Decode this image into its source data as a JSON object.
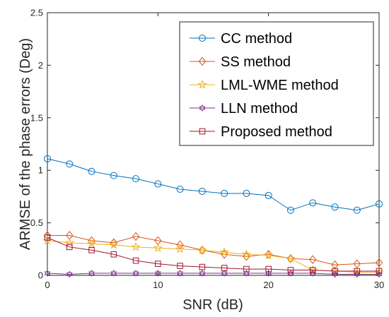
{
  "chart_data": {
    "type": "line",
    "title": "",
    "xlabel": "SNR (dB)",
    "ylabel": "ARMSE of the phase errors (Deg)",
    "xlim": [
      0,
      30
    ],
    "ylim": [
      0,
      2.5
    ],
    "xticks": [
      0,
      10,
      20,
      30
    ],
    "xtick_labels": [
      "0",
      "10",
      "20",
      "30"
    ],
    "yticks": [
      0,
      0.5,
      1,
      1.5,
      2,
      2.5
    ],
    "ytick_labels": [
      "0",
      "0.5",
      "1",
      "1.5",
      "2",
      "2.5"
    ],
    "grid": false,
    "legend_position": "top-right",
    "x": [
      0,
      2,
      4,
      6,
      8,
      10,
      12,
      14,
      16,
      18,
      20,
      22,
      24,
      26,
      28,
      30
    ],
    "series": [
      {
        "name": "CC method",
        "color": "#0072BD",
        "marker": "circle",
        "values": [
          1.11,
          1.06,
          0.99,
          0.95,
          0.92,
          0.87,
          0.82,
          0.8,
          0.78,
          0.78,
          0.76,
          0.62,
          0.69,
          0.65,
          0.62,
          0.68
        ]
      },
      {
        "name": "SS method",
        "color": "#D95319",
        "marker": "diamond",
        "values": [
          0.38,
          0.38,
          0.33,
          0.31,
          0.37,
          0.33,
          0.29,
          0.24,
          0.2,
          0.18,
          0.2,
          0.16,
          0.15,
          0.1,
          0.11,
          0.12
        ]
      },
      {
        "name": "LML-WME method",
        "color": "#EDB120",
        "marker": "star",
        "values": [
          0.33,
          0.31,
          0.3,
          0.29,
          0.27,
          0.26,
          0.25,
          0.24,
          0.22,
          0.2,
          0.19,
          0.16,
          0.05,
          0.04,
          0.03,
          0.03
        ]
      },
      {
        "name": "LLN method",
        "color": "#7E2F8E",
        "marker": "hexagram",
        "values": [
          0.02,
          0.01,
          0.02,
          0.02,
          0.02,
          0.02,
          0.02,
          0.02,
          0.02,
          0.02,
          0.02,
          0.02,
          0.02,
          0.01,
          0.01,
          0.01
        ]
      },
      {
        "name": "Proposed method",
        "color": "#A2142F",
        "marker": "square",
        "values": [
          0.36,
          0.27,
          0.24,
          0.2,
          0.14,
          0.11,
          0.09,
          0.08,
          0.07,
          0.06,
          0.06,
          0.05,
          0.05,
          0.04,
          0.04,
          0.04
        ]
      }
    ]
  }
}
